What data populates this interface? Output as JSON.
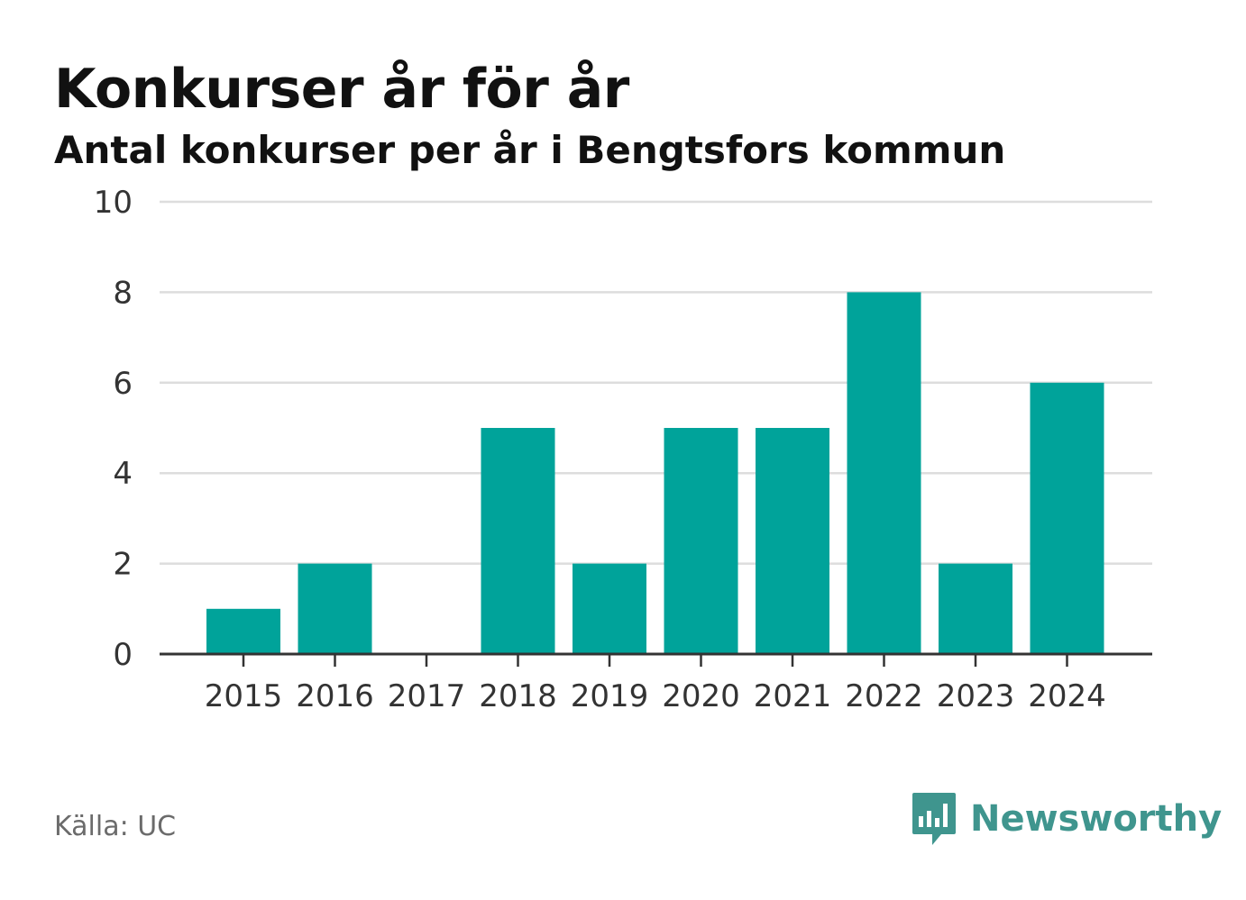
{
  "chart_data": {
    "type": "bar",
    "title": "Konkurser år för år",
    "subtitle": "Antal konkurser per år i Bengtsfors kommun",
    "categories": [
      "2015",
      "2016",
      "2017",
      "2018",
      "2019",
      "2020",
      "2021",
      "2022",
      "2023",
      "2024"
    ],
    "values": [
      1,
      2,
      0,
      5,
      2,
      5,
      5,
      8,
      2,
      6
    ],
    "yticks": [
      "0",
      "2",
      "4",
      "6",
      "8",
      "10"
    ],
    "ylim": [
      0,
      10
    ],
    "xlabel": "",
    "ylabel": "",
    "grid": true,
    "bar_color": "#00a39a",
    "grid_color": "#dddddd",
    "axis_color": "#333333"
  },
  "footer": {
    "source": "Källa: UC",
    "brand": "Newsworthy",
    "brand_color": "#3f958e",
    "brand_icon": "newsworthy-logo-icon"
  }
}
